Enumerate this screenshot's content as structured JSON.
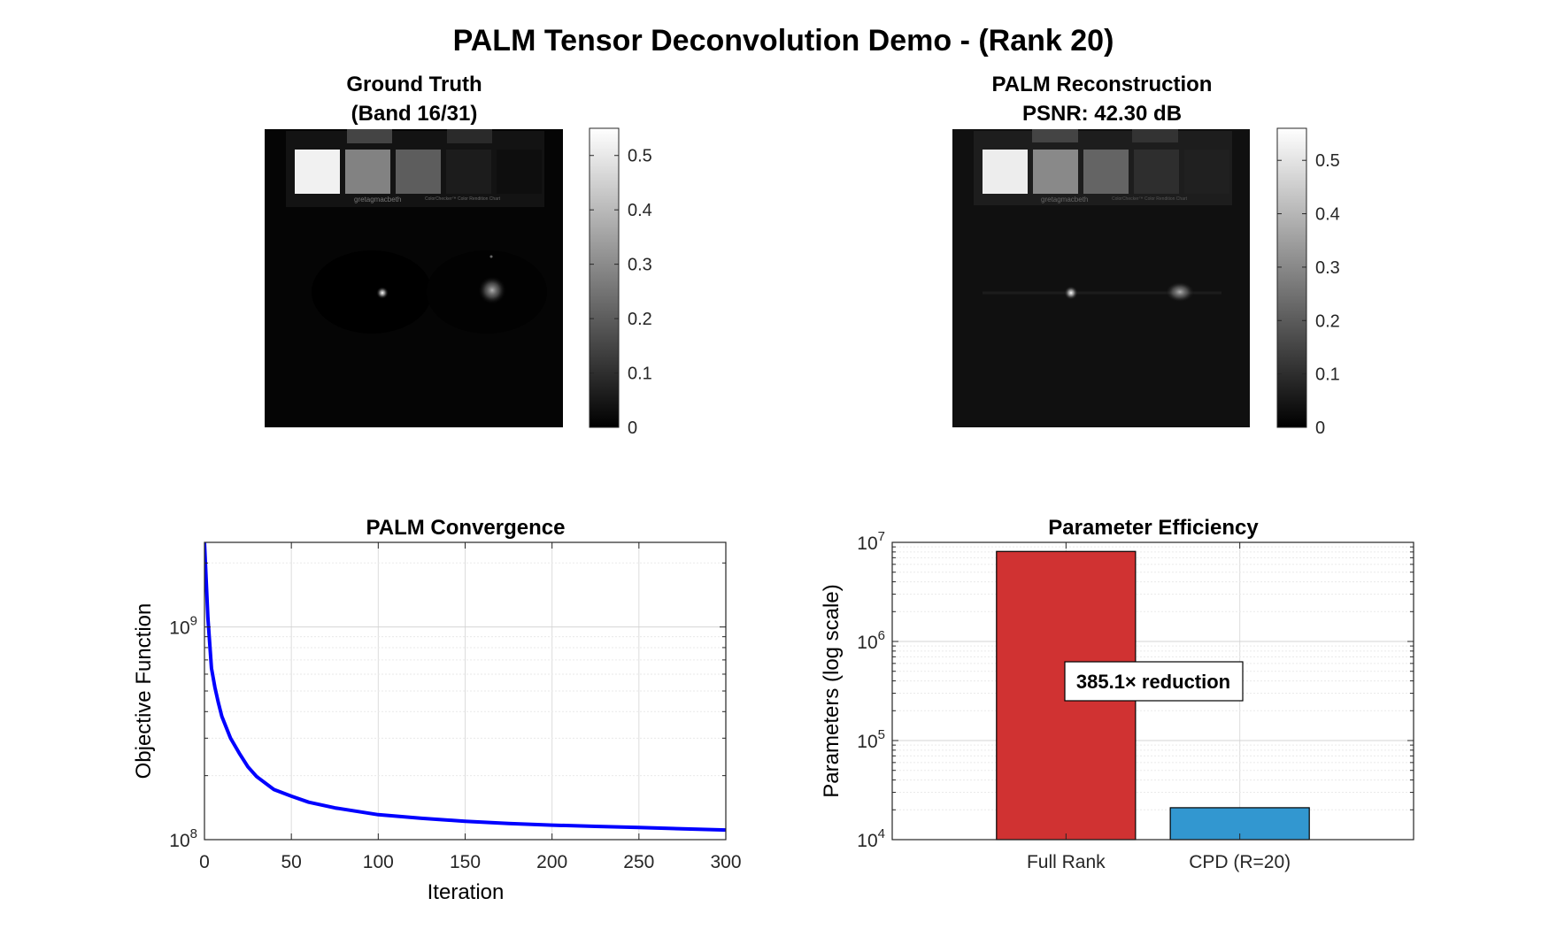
{
  "figure_title": "PALM Tensor Deconvolution Demo - (Rank 20)",
  "panels": {
    "ground_truth": {
      "title_line1": "Ground Truth",
      "title_line2": "(Band 16/31)",
      "colorbar_ticks": [
        "0",
        "0.1",
        "0.2",
        "0.3",
        "0.4",
        "0.5"
      ],
      "colorbar_range": [
        0,
        0.55
      ],
      "chart_label_small": "gretagmacbeth",
      "chart_label_tiny": "ColorChecker™ Color Rendition Chart",
      "patch_levels": [
        0.52,
        0.28,
        0.2,
        0.06,
        0.03
      ]
    },
    "reconstruction": {
      "title_line1": "PALM Reconstruction",
      "title_line2": "PSNR: 42.30 dB",
      "colorbar_ticks": [
        "0",
        "0.1",
        "0.2",
        "0.3",
        "0.4",
        "0.5"
      ],
      "colorbar_range": [
        0,
        0.56
      ],
      "chart_label_small": "gretagmacbeth",
      "chart_label_tiny": "ColorChecker™ Color Rendition Chart",
      "patch_levels": [
        0.52,
        0.3,
        0.22,
        0.1,
        0.07
      ]
    }
  },
  "chart_data": [
    {
      "type": "line",
      "title": "PALM Convergence",
      "xlabel": "Iteration",
      "ylabel": "Objective Function",
      "xlim": [
        0,
        300
      ],
      "ylim": [
        100000000,
        2500000000
      ],
      "yscale": "log",
      "grid": true,
      "xticks": [
        0,
        50,
        100,
        150,
        200,
        250,
        300
      ],
      "yticks": [
        {
          "base": "10",
          "exp": "8"
        },
        {
          "base": "10",
          "exp": "9"
        }
      ],
      "series": [
        {
          "color": "#0000ff",
          "x": [
            0,
            2,
            4,
            6,
            8,
            10,
            15,
            20,
            25,
            30,
            40,
            50,
            60,
            75,
            100,
            125,
            150,
            175,
            200,
            225,
            250,
            275,
            300
          ],
          "y": [
            2500000000,
            1100000000,
            640000000,
            520000000,
            440000000,
            380000000,
            300000000,
            255000000,
            220000000,
            198000000,
            172000000,
            160000000,
            150000000,
            141000000,
            131000000,
            126000000,
            122000000,
            119000000,
            117000000,
            115500000,
            114000000,
            112500000,
            111000000
          ]
        }
      ]
    },
    {
      "type": "bar",
      "title": "Parameter Efficiency",
      "xlabel": "",
      "ylabel": "Parameters (log scale)",
      "yscale": "log",
      "ylim": [
        10000,
        10000000
      ],
      "grid": true,
      "categories": [
        "Full Rank",
        "CPD (R=20)"
      ],
      "values": [
        8100000,
        21000
      ],
      "bar_colors": [
        "#d03232",
        "#3297d0"
      ],
      "yticks": [
        {
          "base": "10",
          "exp": "4"
        },
        {
          "base": "10",
          "exp": "5"
        },
        {
          "base": "10",
          "exp": "6"
        },
        {
          "base": "10",
          "exp": "7"
        }
      ],
      "annotation": "385.1× reduction"
    }
  ]
}
